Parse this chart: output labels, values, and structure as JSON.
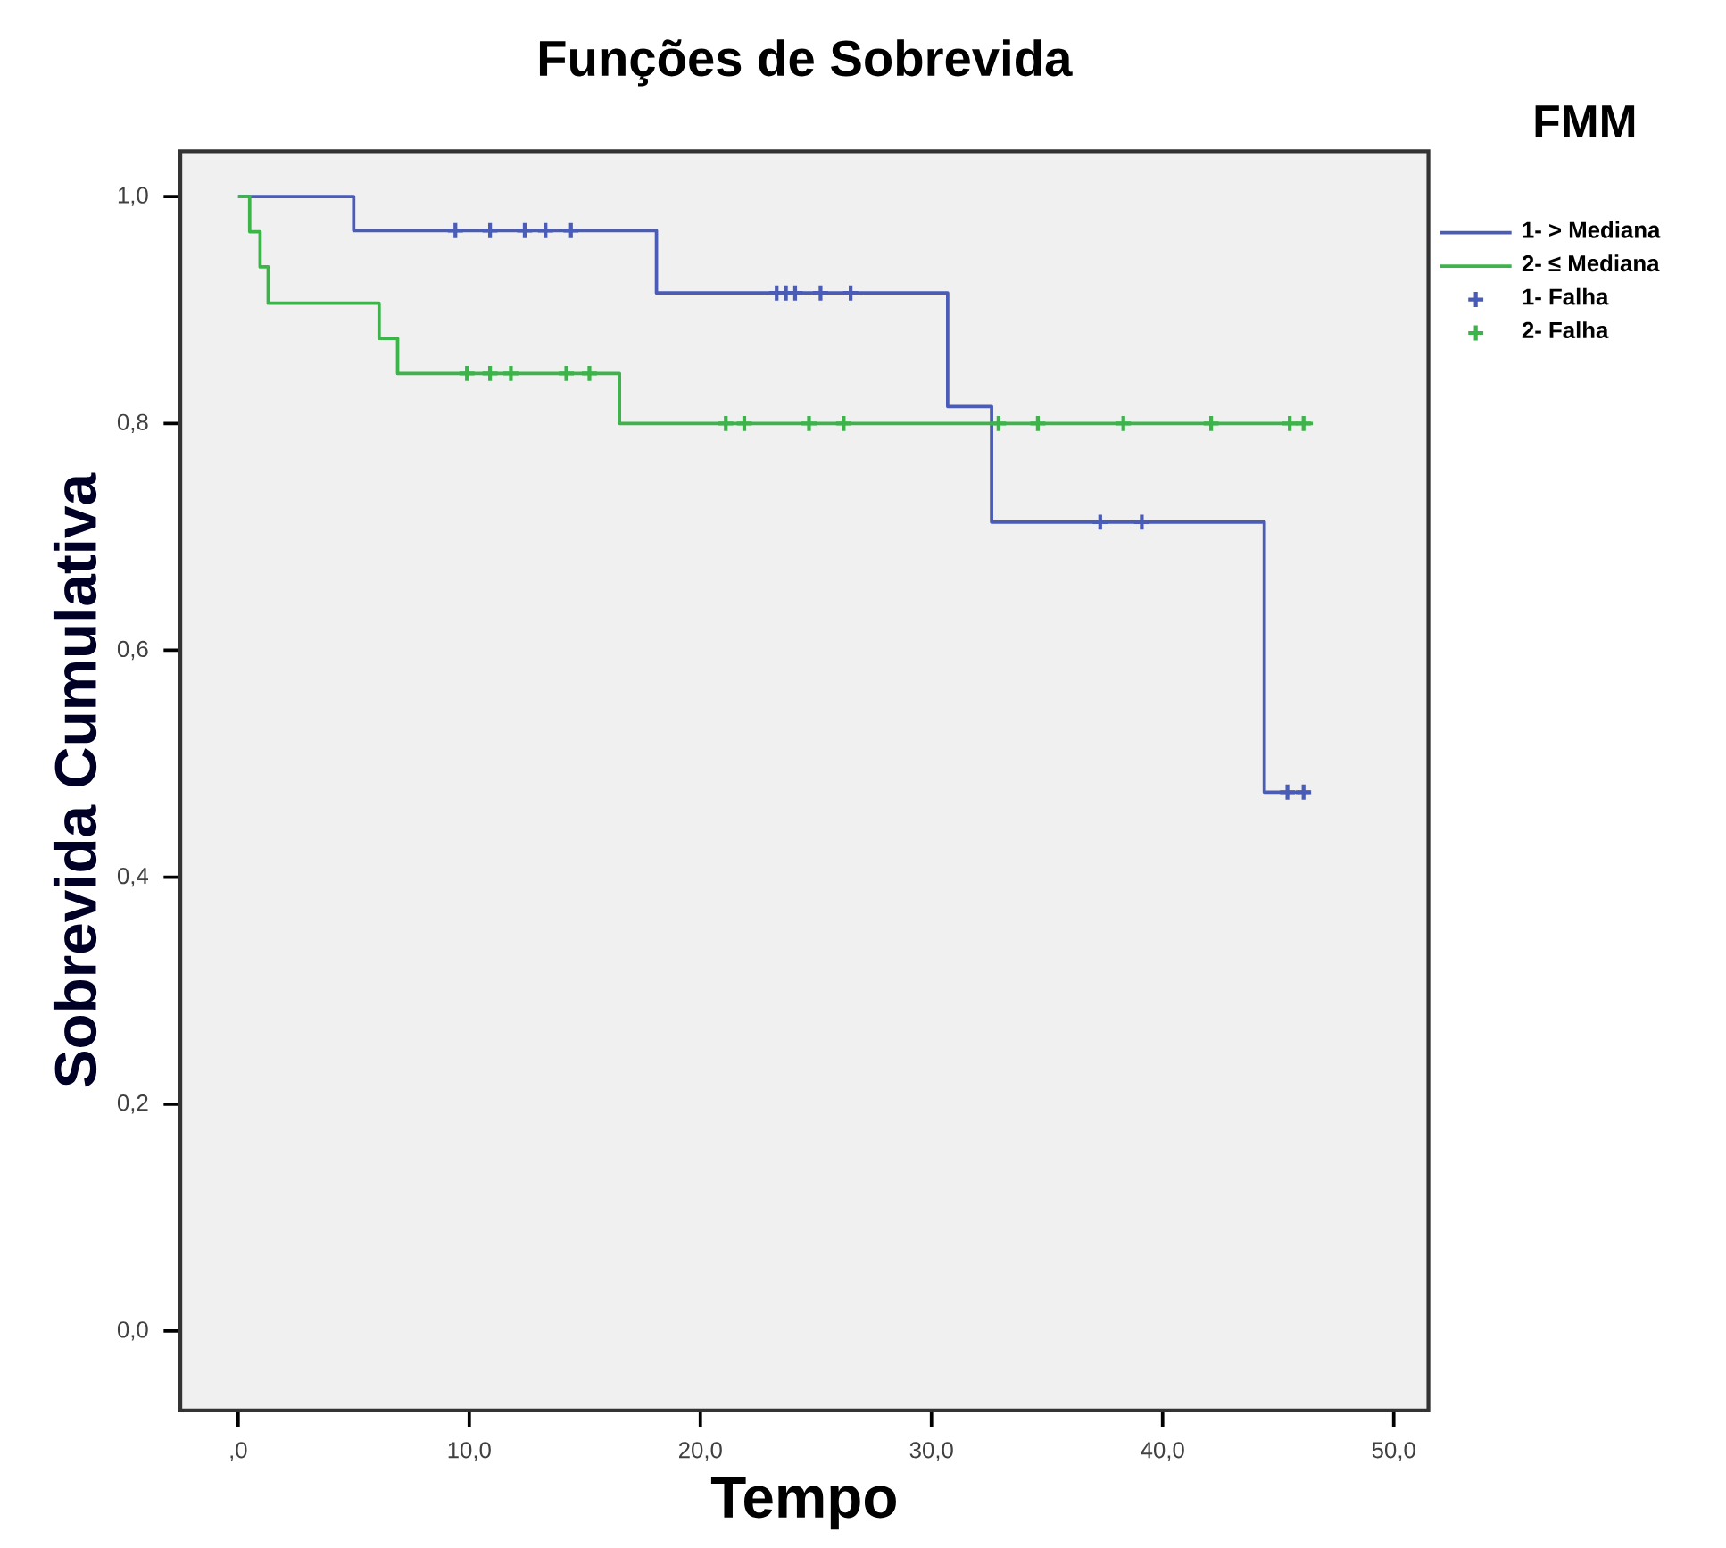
{
  "chart_data": {
    "type": "step",
    "title": "Funções de Sobrevida",
    "xlabel": "Tempo",
    "ylabel": "Sobrevida Cumulativa",
    "legend_title": "FMM",
    "xlim": [
      -2.5,
      51.5
    ],
    "ylim": [
      -0.07,
      1.04
    ],
    "xticks": [
      {
        "value": 0,
        "label": ",0"
      },
      {
        "value": 10,
        "label": "10,0"
      },
      {
        "value": 20,
        "label": "20,0"
      },
      {
        "value": 30,
        "label": "30,0"
      },
      {
        "value": 40,
        "label": "40,0"
      },
      {
        "value": 50,
        "label": "50,0"
      }
    ],
    "yticks": [
      {
        "value": 0,
        "label": "0,0"
      },
      {
        "value": 0.2,
        "label": "0,2"
      },
      {
        "value": 0.4,
        "label": "0,4"
      },
      {
        "value": 0.6,
        "label": "0,6"
      },
      {
        "value": 0.8,
        "label": "0,8"
      },
      {
        "value": 1.0,
        "label": "1,0"
      }
    ],
    "grid": false,
    "legend": "top right",
    "series": [
      {
        "name": "1- > Mediana",
        "color": "#4a5cb5",
        "marker": "none",
        "x": [
          0,
          5.0,
          18.1,
          30.7,
          32.6,
          44.4,
          46.4
        ],
        "values": [
          1.0,
          0.97,
          0.915,
          0.815,
          0.713,
          0.475,
          0.475
        ]
      },
      {
        "name": "2- ≤ Mediana",
        "color": "#3cb44a",
        "marker": "none",
        "x": [
          0,
          0.5,
          0.95,
          1.3,
          6.1,
          6.9,
          16.5,
          46.5
        ],
        "values": [
          1.0,
          0.969,
          0.938,
          0.906,
          0.875,
          0.844,
          0.8,
          0.8
        ]
      },
      {
        "name": "1- Falha",
        "color": "#4a5cb5",
        "type": "scatter",
        "marker": "cross",
        "x": [
          9.4,
          10.9,
          12.4,
          13.3,
          14.4,
          23.3,
          23.7,
          24.1,
          25.2,
          26.5,
          37.3,
          39.1,
          45.4,
          46.1
        ],
        "values": [
          0.97,
          0.97,
          0.97,
          0.97,
          0.97,
          0.915,
          0.915,
          0.915,
          0.915,
          0.915,
          0.713,
          0.713,
          0.475,
          0.475
        ]
      },
      {
        "name": "2- Falha",
        "color": "#3cb44a",
        "type": "scatter",
        "marker": "cross",
        "x": [
          9.9,
          10.9,
          11.8,
          14.2,
          15.2,
          21.1,
          21.9,
          24.7,
          26.2,
          32.9,
          34.6,
          38.3,
          42.1,
          45.5,
          46.1
        ],
        "values": [
          0.844,
          0.844,
          0.844,
          0.844,
          0.844,
          0.8,
          0.8,
          0.8,
          0.8,
          0.8,
          0.8,
          0.8,
          0.8,
          0.8,
          0.8
        ]
      }
    ]
  }
}
